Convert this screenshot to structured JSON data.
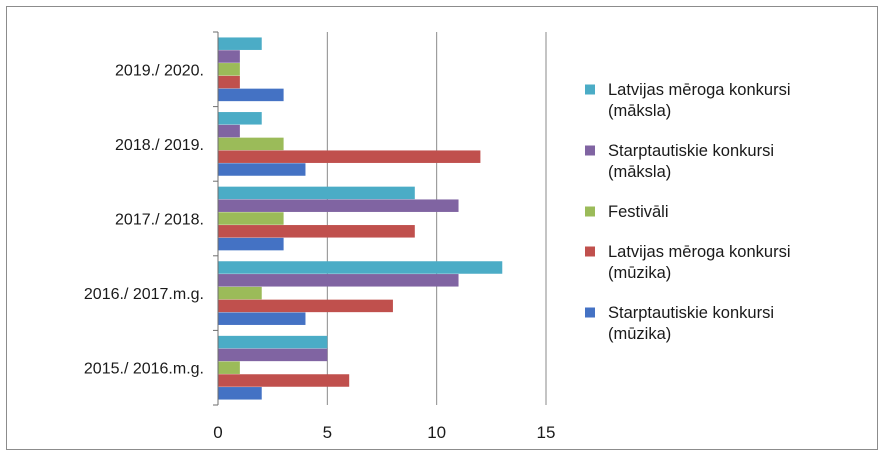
{
  "chart_data": {
    "type": "bar",
    "orientation": "horizontal",
    "categories": [
      "2015./ 2016.m.g.",
      "2016./ 2017.m.g.",
      "2017./ 2018.",
      "2018./ 2019.",
      "2019./ 2020."
    ],
    "series": [
      {
        "name": "Starptautiskie konkursi (mūzika)",
        "name_lines": [
          "Starptautiskie konkursi",
          "(mūzika)"
        ],
        "color": "#4472c4",
        "values": [
          2,
          4,
          3,
          4,
          3
        ]
      },
      {
        "name": "Latvijas mēroga konkursi (mūzika)",
        "name_lines": [
          "Latvijas mēroga konkursi",
          "(mūzika)"
        ],
        "color": "#c0504d",
        "values": [
          6,
          8,
          9,
          12,
          1
        ]
      },
      {
        "name": "Festivāli",
        "name_lines": [
          "Festivāli"
        ],
        "color": "#9bbb59",
        "values": [
          1,
          2,
          3,
          3,
          1
        ]
      },
      {
        "name": "Starptautiskie konkursi (māksla)",
        "name_lines": [
          "Starptautiskie konkursi",
          "(māksla)"
        ],
        "color": "#8064a2",
        "values": [
          5,
          11,
          11,
          1,
          1
        ]
      },
      {
        "name": "Latvijas mēroga konkursi (māksla)",
        "name_lines": [
          "Latvijas mēroga konkursi",
          "(māksla)"
        ],
        "color": "#4bacc6",
        "values": [
          5,
          13,
          9,
          2,
          2
        ]
      }
    ],
    "xlim": [
      0,
      15
    ],
    "xticks": [
      0,
      5,
      10,
      15
    ],
    "grid": true,
    "legend_position": "right",
    "title": "",
    "xlabel": "",
    "ylabel": ""
  }
}
